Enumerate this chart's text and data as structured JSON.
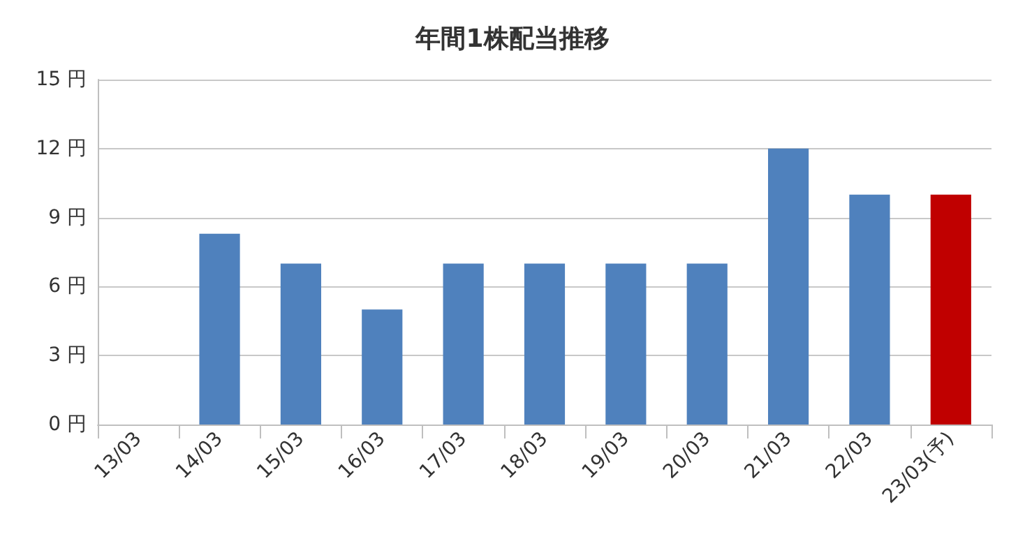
{
  "chart_data": {
    "type": "bar",
    "title": "年間1株配当推移",
    "categories": [
      "13/03",
      "14/03",
      "15/03",
      "16/03",
      "17/03",
      "18/03",
      "19/03",
      "20/03",
      "21/03",
      "22/03",
      "23/03(予)"
    ],
    "values": [
      null,
      8.3,
      7,
      5,
      7,
      7,
      7,
      7,
      12,
      10,
      10
    ],
    "colors": [
      "#4f81bd",
      "#4f81bd",
      "#4f81bd",
      "#4f81bd",
      "#4f81bd",
      "#4f81bd",
      "#4f81bd",
      "#4f81bd",
      "#4f81bd",
      "#4f81bd",
      "#c00000"
    ],
    "ylim": [
      0,
      15
    ],
    "yticks": [
      {
        "value": 0,
        "label": "0 円"
      },
      {
        "value": 3,
        "label": "3 円"
      },
      {
        "value": 6,
        "label": "6 円"
      },
      {
        "value": 9,
        "label": "9 円"
      },
      {
        "value": 12,
        "label": "12 円"
      },
      {
        "value": 15,
        "label": "15 円"
      }
    ],
    "grid": "y"
  }
}
